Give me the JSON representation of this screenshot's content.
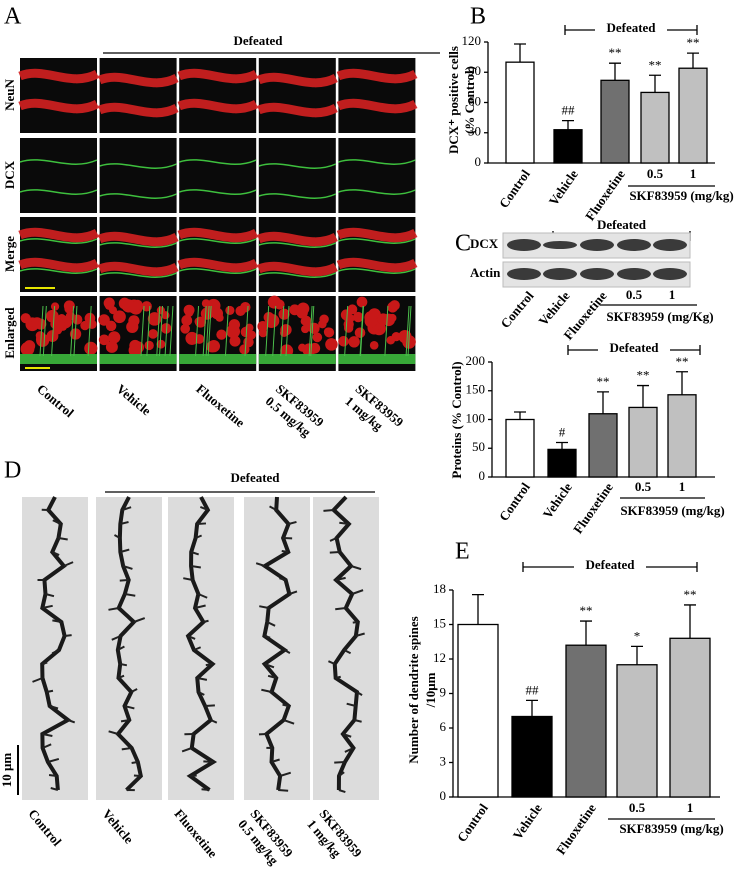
{
  "panel_A": {
    "letter": "A",
    "bracket": "Defeated",
    "rows": [
      "NeuN",
      "DCX",
      "Merge",
      "Enlarged"
    ],
    "columns": [
      [
        "Control"
      ],
      [
        "Vehicle"
      ],
      [
        "Fluoxetine"
      ],
      [
        "SKF83959",
        "0.5 mg/kg"
      ],
      [
        "SKF83959",
        "1 mg/kg"
      ]
    ]
  },
  "panel_D": {
    "letter": "D",
    "bracket": "Defeated",
    "scale": "10 μm",
    "columns": [
      [
        "Control"
      ],
      [
        "Vehicle"
      ],
      [
        "Fluoxetine"
      ],
      [
        "SKF83959",
        "0.5 mg/kg"
      ],
      [
        "SKF83959",
        "1 mg/kg"
      ]
    ]
  },
  "blot": {
    "letter": "C",
    "bracket": "Defeated",
    "rows": [
      "DCX",
      "Actin"
    ],
    "categories": [
      "Control",
      "Vehicle",
      "Fluoxetine",
      "0.5",
      "1"
    ],
    "group": "SKF83959 (mg/Kg)"
  },
  "chart_data": [
    {
      "type": "bar",
      "panel": "B",
      "ylabel": [
        "DCX⁺ positive cells",
        "(% Control)"
      ],
      "categories": [
        "Control",
        "Vehicle",
        "Fluoxetine",
        "0.5",
        "1"
      ],
      "group": "SKF83959 (mg/kg)",
      "bracket": "Defeated",
      "values": [
        100,
        33,
        82,
        70,
        94
      ],
      "errors": [
        18,
        9,
        17,
        17,
        15
      ],
      "annotations": [
        null,
        "##",
        "**",
        "**",
        "**"
      ],
      "colors": [
        "#ffffff",
        "#000000",
        "#707070",
        "#c0c0c0",
        "#c0c0c0"
      ],
      "ylim": [
        0,
        120
      ],
      "yticks": [
        0,
        30,
        60,
        90,
        120
      ]
    },
    {
      "type": "bar",
      "ylabel": [
        "Proteins (% Control)"
      ],
      "categories": [
        "Control",
        "Vehicle",
        "Fluoxetine",
        "0.5",
        "1"
      ],
      "group": "SKF83959 (mg/kg)",
      "bracket": "Defeated",
      "values": [
        100,
        48,
        110,
        121,
        143
      ],
      "errors": [
        13,
        12,
        38,
        38,
        40
      ],
      "annotations": [
        null,
        "#",
        "**",
        "**",
        "**"
      ],
      "colors": [
        "#ffffff",
        "#000000",
        "#707070",
        "#c0c0c0",
        "#c0c0c0"
      ],
      "ylim": [
        0,
        200
      ],
      "yticks": [
        0,
        50,
        100,
        150,
        200
      ]
    },
    {
      "type": "bar",
      "panel": "E",
      "ylabel": [
        "Number of dendrite spines",
        "/10μm"
      ],
      "categories": [
        "Control",
        "Vehicle",
        "Fluoxetine",
        "0.5",
        "1"
      ],
      "group": "SKF83959 (mg/kg)",
      "bracket": "Defeated",
      "values": [
        15,
        7,
        13.2,
        11.5,
        13.8
      ],
      "errors": [
        2.6,
        1.4,
        2.1,
        1.6,
        2.9
      ],
      "annotations": [
        null,
        "##",
        "**",
        "*",
        "**"
      ],
      "colors": [
        "#ffffff",
        "#000000",
        "#707070",
        "#c0c0c0",
        "#c0c0c0"
      ],
      "ylim": [
        0,
        18
      ],
      "yticks": [
        0,
        3,
        6,
        9,
        12,
        15,
        18
      ]
    }
  ]
}
